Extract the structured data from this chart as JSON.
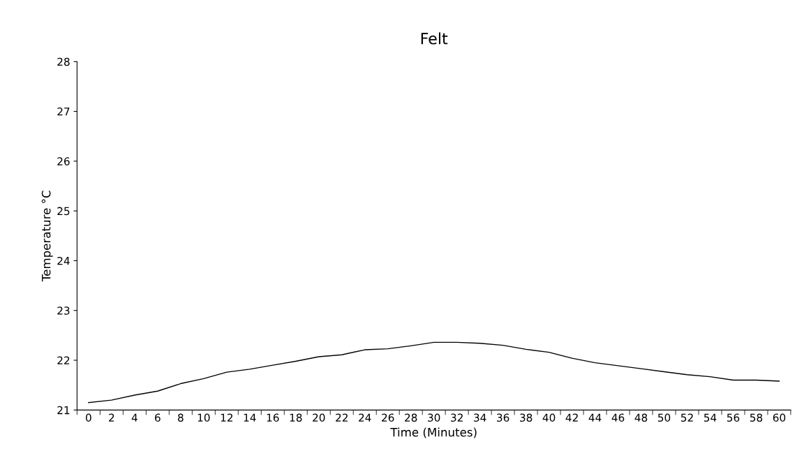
{
  "chart_data": {
    "type": "line",
    "title": "Felt",
    "xlabel": "Time (Minutes)",
    "ylabel": "Temperature °C",
    "categories": [
      "0",
      "2",
      "4",
      "6",
      "8",
      "10",
      "12",
      "14",
      "16",
      "18",
      "20",
      "22",
      "24",
      "26",
      "28",
      "30",
      "32",
      "34",
      "36",
      "38",
      "40",
      "42",
      "44",
      "46",
      "48",
      "50",
      "52",
      "54",
      "56",
      "58",
      "60"
    ],
    "series": [
      {
        "color": "#000000",
        "values": [
          21.15,
          21.2,
          21.3,
          21.38,
          21.53,
          21.63,
          21.76,
          21.82,
          21.9,
          21.98,
          22.07,
          22.11,
          22.21,
          22.23,
          22.29,
          22.36,
          22.36,
          22.34,
          22.3,
          22.22,
          22.16,
          22.04,
          21.95,
          21.89,
          21.83,
          21.77,
          21.71,
          21.67,
          21.6,
          21.6,
          21.58
        ]
      }
    ],
    "ylim": [
      21,
      28
    ],
    "yticks": [
      21,
      22,
      23,
      24,
      25,
      26,
      27,
      28
    ],
    "grid": false,
    "legend": false,
    "marker": "none",
    "line_style": "solid"
  }
}
